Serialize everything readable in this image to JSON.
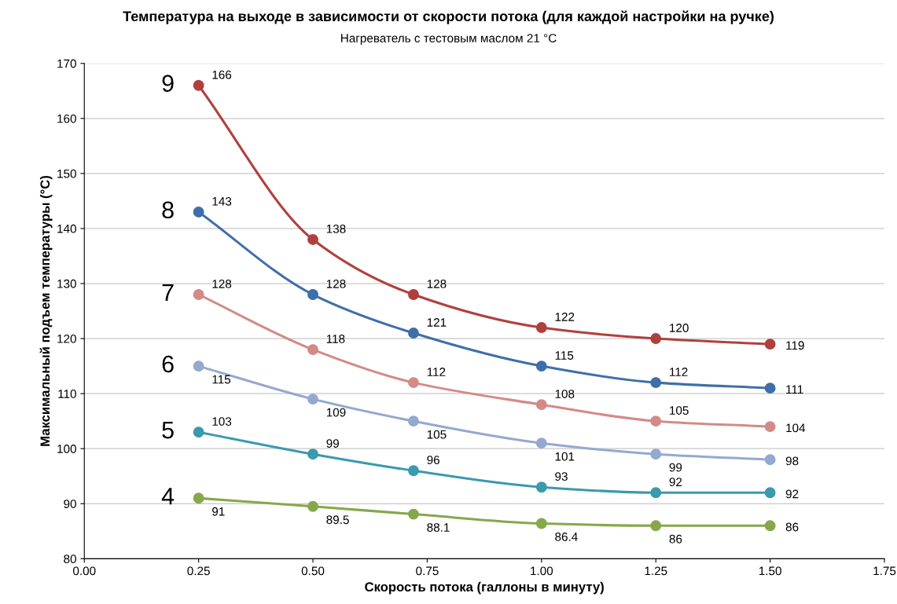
{
  "chart_data": {
    "type": "line",
    "title": "Температура на выходе в зависимости от скорости потока (для каждой настройки на ручке)",
    "subtitle": "Нагреватель с тестовым маслом 21 °C",
    "xlabel": "Скорость потока (галлоны в минуту)",
    "ylabel": "Максимальный подъем температуры (°C)",
    "x": [
      0.25,
      0.5,
      0.72,
      1.0,
      1.25,
      1.5
    ],
    "series": [
      {
        "name": "9",
        "color": "#b0403d",
        "values": [
          166,
          138,
          128,
          122,
          120,
          119
        ]
      },
      {
        "name": "8",
        "color": "#3f6faa",
        "values": [
          143,
          128,
          121,
          115,
          112,
          111
        ]
      },
      {
        "name": "7",
        "color": "#d48a87",
        "values": [
          128,
          118,
          112,
          108,
          105,
          104
        ]
      },
      {
        "name": "6",
        "color": "#93a9d0",
        "values": [
          115,
          109,
          105,
          101,
          99,
          98
        ]
      },
      {
        "name": "5",
        "color": "#3a9aae",
        "values": [
          103,
          99,
          96,
          93,
          92,
          92
        ]
      },
      {
        "name": "4",
        "color": "#86a84a",
        "values": [
          91,
          89.5,
          88.1,
          86.4,
          86,
          86
        ]
      }
    ],
    "xlim": [
      0,
      1.75
    ],
    "xticks": [
      {
        "value": 0,
        "label": "0.00"
      },
      {
        "value": 0.25,
        "label": "0.25"
      },
      {
        "value": 0.5,
        "label": "0.50"
      },
      {
        "value": 0.75,
        "label": "0.75"
      },
      {
        "value": 1,
        "label": "1.00"
      },
      {
        "value": 1.25,
        "label": "1.25"
      },
      {
        "value": 1.5,
        "label": "1.50"
      },
      {
        "value": 1.75,
        "label": "1.75"
      }
    ],
    "ylim": [
      80,
      170
    ],
    "yticks": [
      80,
      90,
      100,
      110,
      120,
      130,
      140,
      150,
      160,
      170
    ],
    "grid": "y",
    "legend": false,
    "marker": "circle",
    "line_style": "solid",
    "data_labels": true
  }
}
